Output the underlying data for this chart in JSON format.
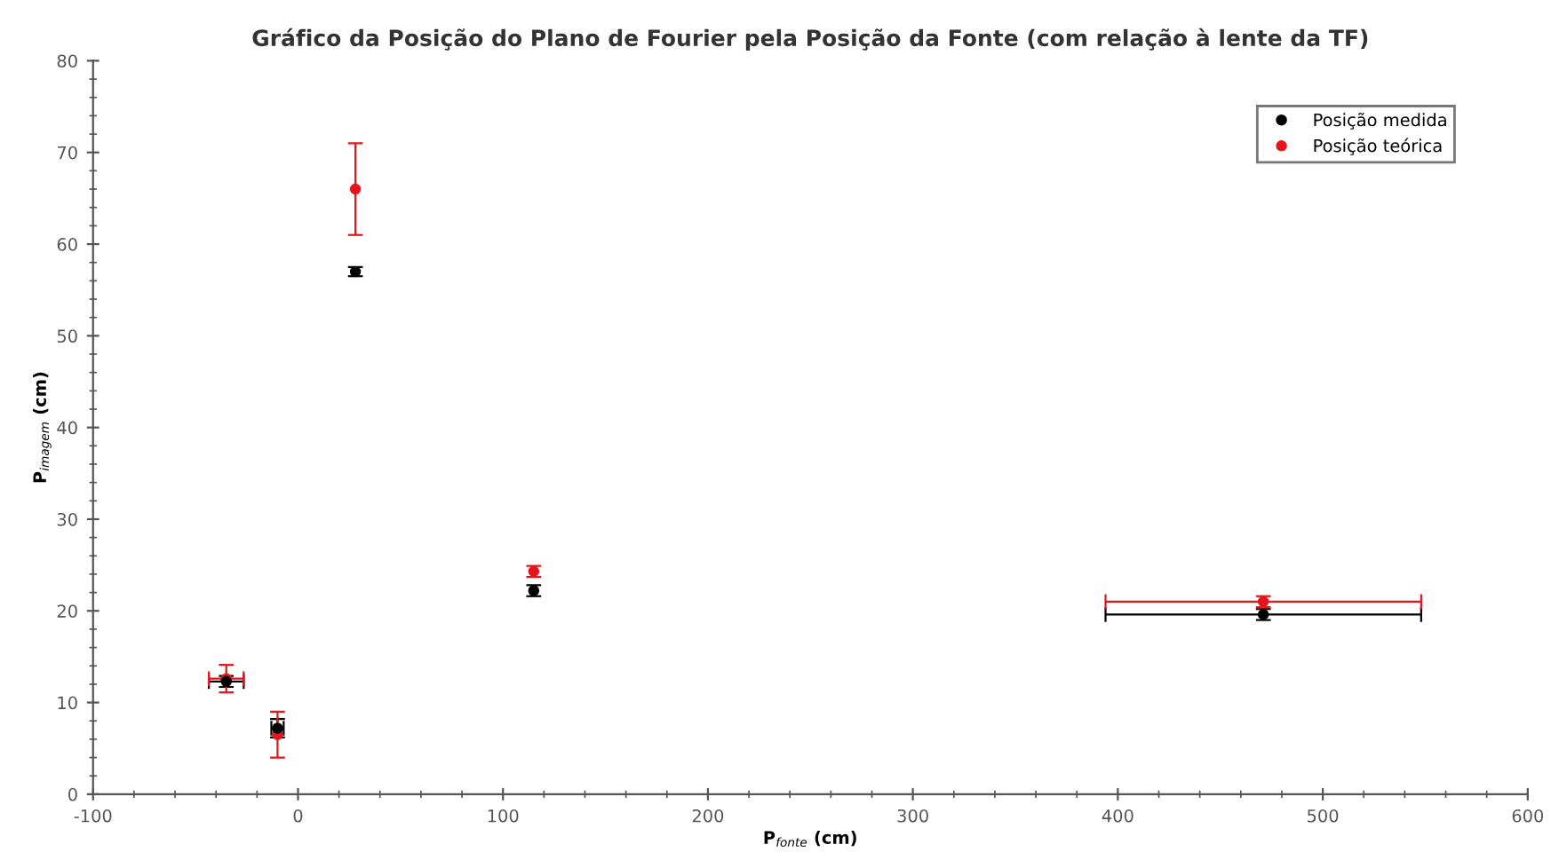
{
  "chart_data": {
    "type": "scatter",
    "title": "Gráfico da Posição do Plano de Fourier pela Posição da Fonte (com relação à lente da TF)",
    "xlabel": "P$_{fonte}$ (cm)",
    "ylabel": "P$_{imagem}$ (cm)",
    "series": [
      {
        "name": "Posição medida",
        "color": "#000000",
        "x": [
          -35,
          -10,
          28,
          115,
          471
        ],
        "values": [
          12.3,
          7.2,
          57,
          22.2,
          19.6
        ],
        "errors": [
          0.6,
          1,
          0.5,
          0.6,
          0.6
        ],
        "xerrors": [
          8.5,
          3,
          null,
          null,
          77
        ]
      },
      {
        "name": "Posição teórica",
        "color": "#e8141c",
        "x": [
          -35,
          -10,
          28,
          115,
          471
        ],
        "values": [
          12.6,
          6.5,
          66,
          24.3,
          21
        ],
        "errors": [
          1.5,
          2.5,
          5,
          0.6,
          0.6
        ],
        "xerrors": [
          8.5,
          null,
          null,
          null,
          77
        ]
      }
    ],
    "xlim": [
      -100,
      600
    ],
    "xticks": [
      -100,
      0,
      100,
      200,
      300,
      400,
      500,
      600
    ],
    "ylim": [
      0,
      80
    ],
    "yticks": [
      0,
      10,
      20,
      30,
      40,
      50,
      60,
      70,
      80
    ],
    "marker": "circle",
    "legend": "top right",
    "grid": false
  }
}
